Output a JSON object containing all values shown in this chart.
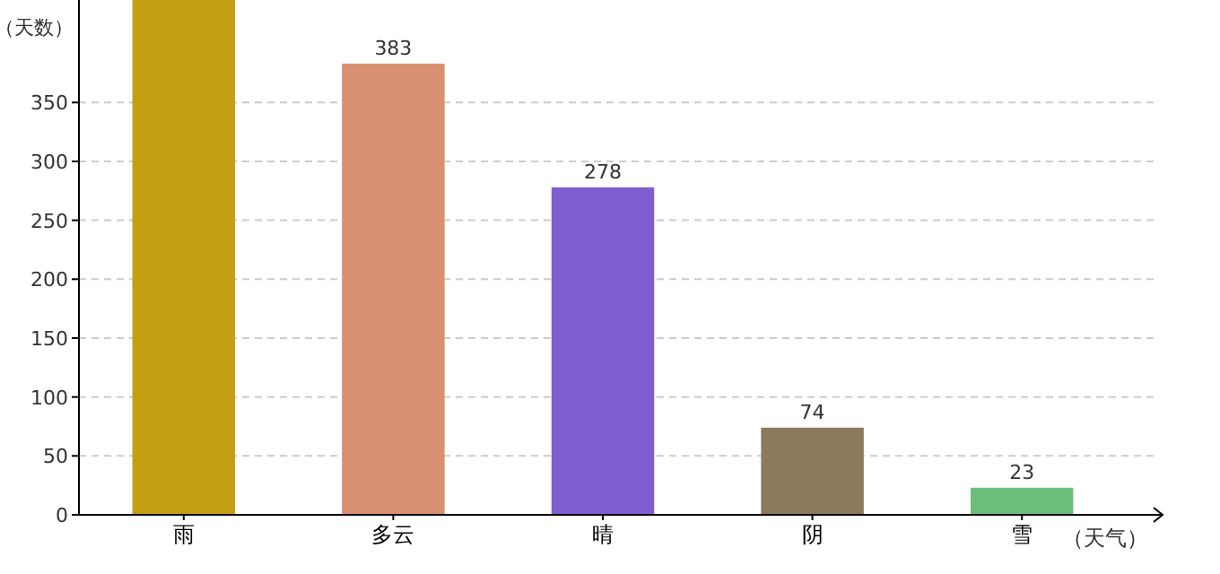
{
  "chart_data": {
    "type": "bar",
    "ylabel": "（天数）",
    "xlabel": "（天气）",
    "categories": [
      "雨",
      "多云",
      "晴",
      "阴",
      "雪"
    ],
    "values": [
      437,
      383,
      278,
      74,
      23
    ],
    "value_labels": [
      null,
      "383",
      "278",
      "74",
      "23"
    ],
    "colors": [
      "#c49e13",
      "#d98f72",
      "#7f5fcf",
      "#8b7b5a",
      "#6bbf7a"
    ],
    "ylim": [
      0,
      437
    ],
    "yticks": [
      0,
      50,
      100,
      150,
      200,
      250,
      300,
      350
    ],
    "grid": "y"
  }
}
